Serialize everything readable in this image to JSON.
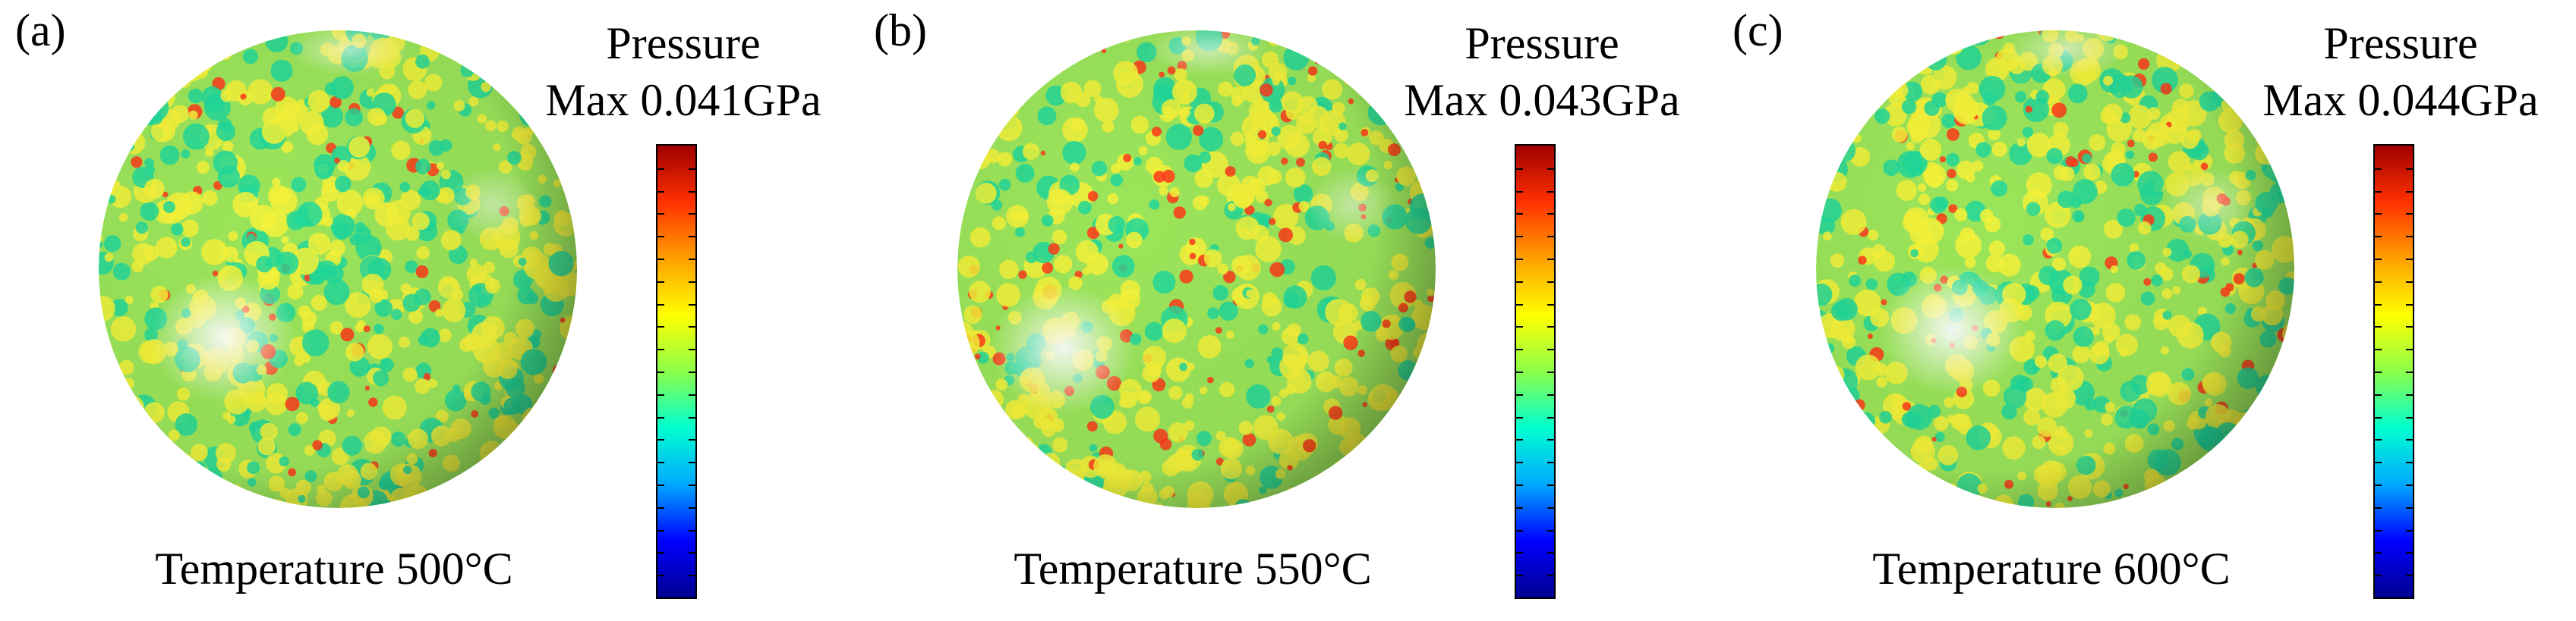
{
  "panels": [
    {
      "label": "(a)",
      "colorbar_title": "Pressure",
      "colorbar_max": "Max 0.041GPa",
      "temperature": "Temperature 500°C"
    },
    {
      "label": "(b)",
      "colorbar_title": "Pressure",
      "colorbar_max": "Max 0.043GPa",
      "temperature": "Temperature 550°C"
    },
    {
      "label": "(c)",
      "colorbar_title": "Pressure",
      "colorbar_max": "Max 0.044GPa",
      "temperature": "Temperature 600°C"
    }
  ],
  "colormap": [
    "#00008f",
    "#0000ff",
    "#00a8ff",
    "#00ffd0",
    "#8cff4a",
    "#ffff00",
    "#ffa000",
    "#ff3000",
    "#a00000"
  ],
  "sphere_colors": {
    "base": "#9be55a",
    "green": "#22d89a",
    "yellow": "#f4f23a",
    "red": "#ff3a1a",
    "highlight": "#ffffff"
  }
}
